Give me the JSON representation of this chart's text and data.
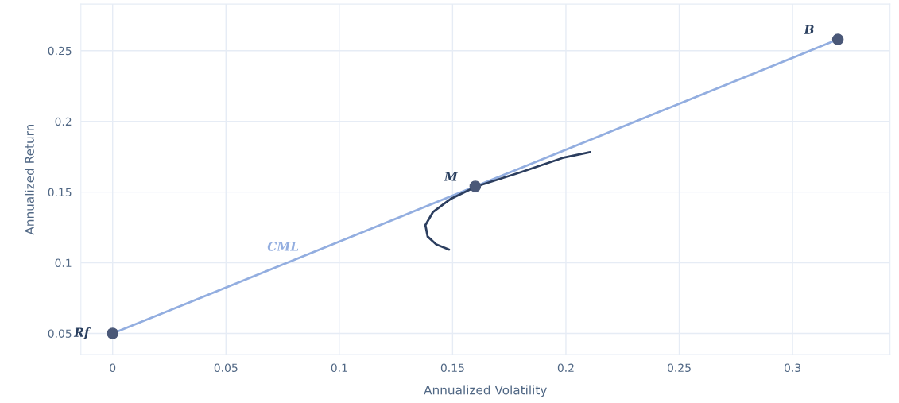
{
  "chart_data": {
    "type": "line",
    "xlabel": "Annualized Volatility",
    "ylabel": "Annualized Return",
    "xlim": [
      -0.014,
      0.343
    ],
    "ylim": [
      0.035,
      0.283
    ],
    "xticks": [
      0,
      0.05,
      0.1,
      0.15,
      0.2,
      0.25,
      0.3
    ],
    "yticks": [
      0.05,
      0.1,
      0.15,
      0.2,
      0.25
    ],
    "grid": true,
    "series": [
      {
        "name": "CML",
        "color": "#93aee0",
        "x": [
          0,
          0.32
        ],
        "values": [
          0.05,
          0.258
        ]
      },
      {
        "color": "#2c3e5f",
        "x": [
          0.2107,
          0.1993,
          0.18,
          0.1605,
          0.149,
          0.1414,
          0.138,
          0.139,
          0.1428,
          0.1484
        ],
        "values": [
          0.1783,
          0.1745,
          0.164,
          0.154,
          0.145,
          0.136,
          0.1266,
          0.1185,
          0.113,
          0.1093
        ]
      },
      {
        "type": "scatter",
        "color": "#4a5878",
        "x": [
          0,
          0.16,
          0.32
        ],
        "values": [
          0.05,
          0.154,
          0.258
        ]
      }
    ],
    "annotations": [
      {
        "text": "Rf",
        "x": 0,
        "y": 0.05
      },
      {
        "text": "M",
        "x": 0.16,
        "y": 0.154
      },
      {
        "text": "B",
        "x": 0.32,
        "y": 0.258
      }
    ]
  }
}
